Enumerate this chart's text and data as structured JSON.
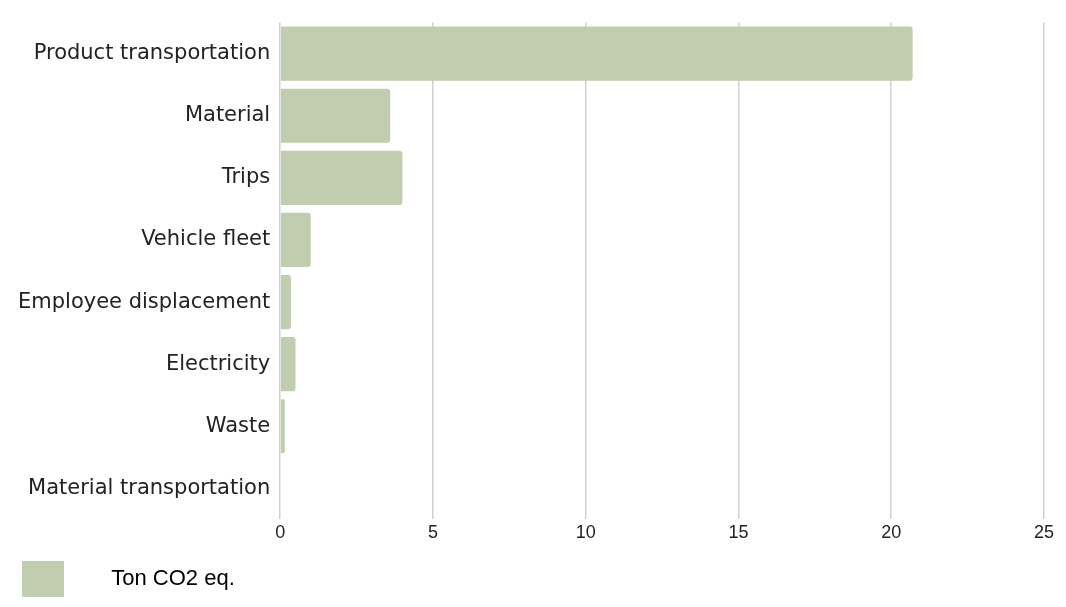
{
  "chart_data": {
    "type": "bar",
    "orientation": "horizontal",
    "categories": [
      "Product transportation",
      "Material",
      "Trips",
      "Vehicle fleet",
      "Employee displacement",
      "Electricity",
      "Waste",
      "Material transportation"
    ],
    "series": [
      {
        "name": "Ton CO2 eq.",
        "color": "#c0cdae",
        "values": [
          20.7,
          3.6,
          4.0,
          1.0,
          0.35,
          0.5,
          0.15,
          0
        ]
      }
    ],
    "xlim": [
      0,
      25
    ],
    "xticks": [
      0,
      5,
      10,
      15,
      20,
      25
    ],
    "grid": "x",
    "legend": "bottom left"
  }
}
